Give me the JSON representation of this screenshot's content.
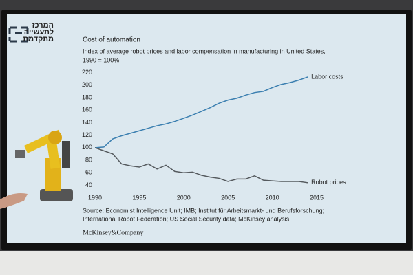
{
  "chart_data": {
    "type": "line",
    "title": "Cost of automation",
    "subtitle": [
      "Index of average robot prices and labor compensation in manufacturing in United States,",
      "1990 = 100%"
    ],
    "source": [
      "Source: Economist Intelligence Unit; IMB; Institut für Arbeitsmarkt- und Berufsforschung;",
      "International Robot Federation; US Social Security data; McKinsey analysis"
    ],
    "brand": "McKinsey&Company",
    "logo": [
      "המרכז",
      "לתעשייה",
      "מתקדמת"
    ],
    "x": [
      1990,
      1991,
      1992,
      1993,
      1994,
      1995,
      1996,
      1997,
      1998,
      1999,
      2000,
      2001,
      2002,
      2003,
      2004,
      2005,
      2006,
      2007,
      2008,
      2009,
      2010,
      2011,
      2012,
      2013,
      2014
    ],
    "series": [
      {
        "name": "Labor costs",
        "color": "#3b7fb0",
        "values": [
          100,
          101,
          114,
          119,
          123,
          127,
          131,
          135,
          138,
          142,
          147,
          152,
          158,
          164,
          171,
          176,
          179,
          184,
          188,
          190,
          196,
          201,
          204,
          208,
          213
        ]
      },
      {
        "name": "Robot prices",
        "color": "#555a5e",
        "values": [
          100,
          95,
          90,
          74,
          71,
          69,
          74,
          66,
          72,
          62,
          60,
          61,
          56,
          53,
          51,
          46,
          50,
          50,
          55,
          48,
          47,
          46,
          46,
          46,
          44
        ]
      }
    ],
    "xlim": [
      1990,
      2015
    ],
    "xticks": [
      1990,
      1995,
      2000,
      2005,
      2010,
      2015
    ],
    "ylim": [
      35,
      225
    ],
    "yticks": [
      40,
      60,
      80,
      100,
      120,
      140,
      160,
      180,
      200,
      220
    ]
  }
}
